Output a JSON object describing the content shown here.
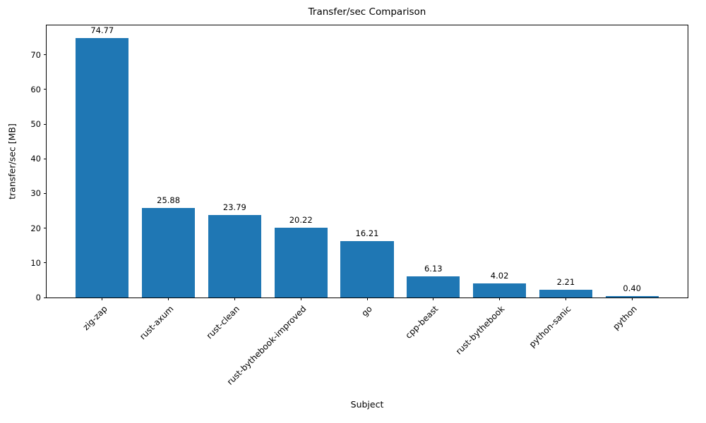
{
  "chart_data": {
    "type": "bar",
    "title": "Transfer/sec Comparison",
    "xlabel": "Subject",
    "ylabel": "transfer/sec [MB]",
    "categories": [
      "zig-zap",
      "rust-axum",
      "rust-clean",
      "rust-bythebook-improved",
      "go",
      "cpp-beast",
      "rust-bythebook",
      "python-sanic",
      "python"
    ],
    "values": [
      74.77,
      25.88,
      23.79,
      20.22,
      16.21,
      6.13,
      4.02,
      2.21,
      0.4
    ],
    "value_labels": [
      "74.77",
      "25.88",
      "23.79",
      "20.22",
      "16.21",
      "6.13",
      "4.02",
      "2.21",
      "0.40"
    ],
    "bar_color": "#1f77b4",
    "ylim": [
      0,
      78.5
    ],
    "yticks": [
      0,
      10,
      20,
      30,
      40,
      50,
      60,
      70
    ],
    "grid": false,
    "legend": null
  }
}
